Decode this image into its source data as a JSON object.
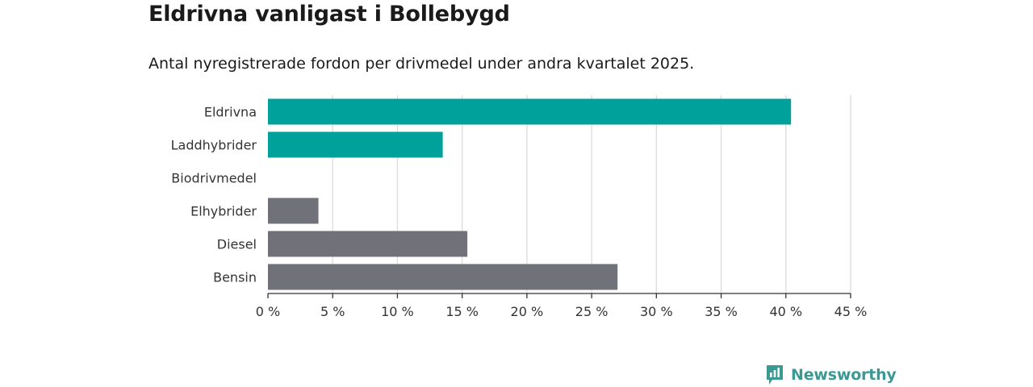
{
  "header": {
    "title": "Eldrivna vanligast i Bollebygd",
    "subtitle": "Antal nyregistrerade fordon per drivmedel under andra kvartalet 2025."
  },
  "brand": {
    "name": "Newsworthy",
    "icon": "newsworthy-logo-icon",
    "color": "#3a9a93"
  },
  "chart_data": {
    "type": "bar",
    "orientation": "horizontal",
    "categories": [
      "Eldrivna",
      "Laddhybrider",
      "Biodrivmedel",
      "Elhybrider",
      "Diesel",
      "Bensin"
    ],
    "values": [
      40.4,
      13.5,
      0,
      3.9,
      15.4,
      27.0
    ],
    "colors": [
      "#00a19a",
      "#00a19a",
      "#71717a",
      "#71717a",
      "#71717a",
      "#71717a"
    ],
    "xlim": [
      0,
      45
    ],
    "xticks": [
      0,
      5,
      10,
      15,
      20,
      25,
      30,
      35,
      40,
      45
    ],
    "xtick_labels": [
      "0 %",
      "5 %",
      "10 %",
      "15 %",
      "20 %",
      "25 %",
      "30 %",
      "35 %",
      "40 %",
      "45 %"
    ],
    "grid": "vertical"
  }
}
